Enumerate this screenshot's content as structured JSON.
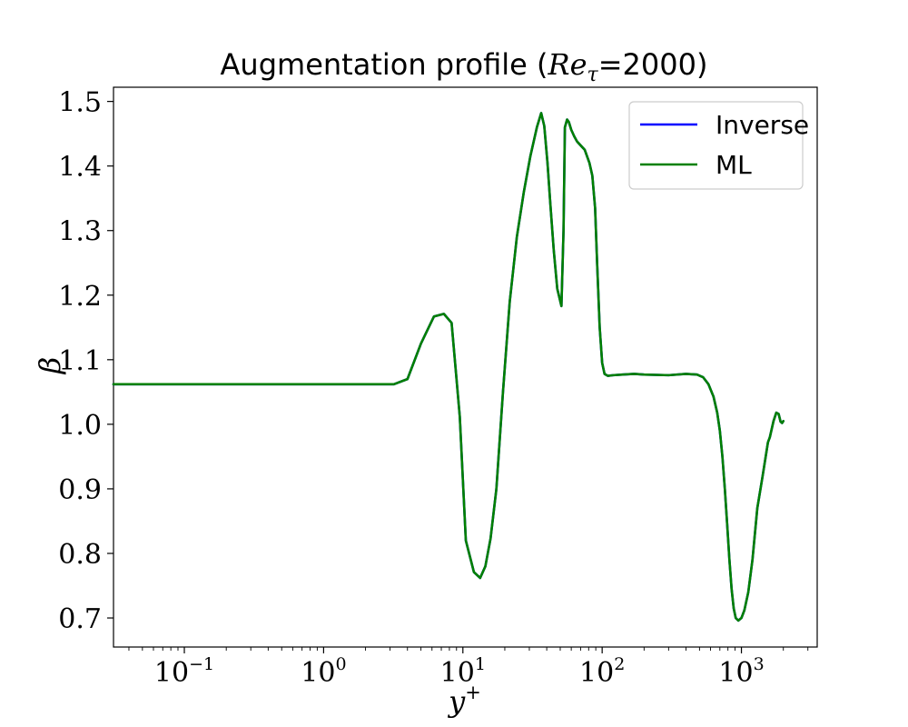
{
  "chart_data": {
    "type": "line",
    "title": {
      "prefix": "Augmentation profile (",
      "math_main": "Re",
      "math_sub": "τ",
      "suffix": "=2000)"
    },
    "xlabel": {
      "main": "y",
      "sup": "+"
    },
    "ylabel": "β",
    "xscale": "log",
    "xlim": [
      0.031,
      3500
    ],
    "ylim": [
      0.655,
      1.522
    ],
    "x_ticks": [
      {
        "value": 0.1,
        "base": "10",
        "exp": "−1"
      },
      {
        "value": 1,
        "base": "10",
        "exp": "0"
      },
      {
        "value": 10,
        "base": "10",
        "exp": "1"
      },
      {
        "value": 100,
        "base": "10",
        "exp": "2"
      },
      {
        "value": 1000,
        "base": "10",
        "exp": "3"
      }
    ],
    "y_ticks": [
      0.7,
      0.8,
      0.9,
      1.0,
      1.1,
      1.2,
      1.3,
      1.4,
      1.5
    ],
    "y_tick_labels": [
      "0.7",
      "0.8",
      "0.9",
      "1.0",
      "1.1",
      "1.2",
      "1.3",
      "1.4",
      "1.5"
    ],
    "grid": false,
    "legend_position": "top-right",
    "series": [
      {
        "name": "Inverse",
        "color": "#0000ff",
        "x": [
          0.031,
          0.1,
          1,
          3.2,
          4.0,
          5.0,
          6.2,
          7.3,
          8.3,
          9.5,
          10.5,
          12.0,
          13.3,
          14.5,
          15.8,
          17.4,
          19.4,
          21.7,
          24.4,
          27.4,
          30.5,
          34.0,
          36.5,
          38.4,
          40.5,
          42.5,
          44.9,
          47.6,
          51.0,
          52.8,
          54.0,
          56.0,
          57.7,
          60.0,
          63.0,
          66.0,
          70.0,
          75.0,
          81.0,
          85.0,
          89.0,
          92.0,
          96.0,
          100.0,
          104.0,
          110.0,
          120.0,
          140.0,
          170.0,
          200.0,
          300.0,
          400.0,
          480.0,
          530.0,
          580.0,
          630.0,
          670.0,
          700.0,
          730.0,
          760.0,
          790.0,
          820.0,
          850.0,
          880.0,
          910.0,
          950.0,
          1000.0,
          1050.0,
          1120.0,
          1200.0,
          1300.0,
          1420.0,
          1550.0,
          1600.0,
          1700.0,
          1780.0,
          1850.0,
          1880.0,
          1910.0,
          1960.0,
          2000.0
        ],
        "y": [
          1.062,
          1.062,
          1.062,
          1.062,
          1.07,
          1.125,
          1.167,
          1.171,
          1.157,
          1.012,
          0.82,
          0.771,
          0.762,
          0.78,
          0.823,
          0.9,
          1.05,
          1.19,
          1.29,
          1.36,
          1.415,
          1.46,
          1.482,
          1.462,
          1.405,
          1.34,
          1.27,
          1.21,
          1.183,
          1.3,
          1.46,
          1.472,
          1.468,
          1.456,
          1.446,
          1.438,
          1.432,
          1.425,
          1.405,
          1.385,
          1.335,
          1.25,
          1.15,
          1.095,
          1.078,
          1.075,
          1.076,
          1.077,
          1.078,
          1.077,
          1.076,
          1.078,
          1.077,
          1.073,
          1.062,
          1.043,
          1.018,
          0.99,
          0.95,
          0.9,
          0.845,
          0.79,
          0.745,
          0.715,
          0.7,
          0.696,
          0.7,
          0.712,
          0.74,
          0.79,
          0.87,
          0.92,
          0.972,
          0.98,
          1.005,
          1.018,
          1.016,
          1.01,
          1.004,
          1.002,
          1.005
        ]
      },
      {
        "name": "ML",
        "color": "#008000",
        "x": [
          0.031,
          0.1,
          1,
          3.2,
          4.0,
          5.0,
          6.2,
          7.3,
          8.3,
          9.5,
          10.5,
          12.0,
          13.3,
          14.5,
          15.8,
          17.4,
          19.4,
          21.7,
          24.4,
          27.4,
          30.5,
          34.0,
          36.5,
          38.4,
          40.5,
          42.5,
          44.9,
          47.6,
          51.0,
          52.8,
          54.0,
          56.0,
          57.7,
          60.0,
          63.0,
          66.0,
          70.0,
          75.0,
          81.0,
          85.0,
          89.0,
          92.0,
          96.0,
          100.0,
          104.0,
          110.0,
          120.0,
          140.0,
          170.0,
          200.0,
          300.0,
          400.0,
          480.0,
          530.0,
          580.0,
          630.0,
          670.0,
          700.0,
          730.0,
          760.0,
          790.0,
          820.0,
          850.0,
          880.0,
          910.0,
          950.0,
          1000.0,
          1050.0,
          1120.0,
          1200.0,
          1300.0,
          1420.0,
          1550.0,
          1600.0,
          1700.0,
          1780.0,
          1850.0,
          1880.0,
          1910.0,
          1960.0,
          2000.0
        ],
        "y": [
          1.062,
          1.062,
          1.062,
          1.062,
          1.07,
          1.125,
          1.167,
          1.171,
          1.157,
          1.012,
          0.82,
          0.771,
          0.762,
          0.78,
          0.823,
          0.9,
          1.05,
          1.19,
          1.29,
          1.36,
          1.415,
          1.46,
          1.482,
          1.462,
          1.405,
          1.34,
          1.27,
          1.21,
          1.183,
          1.3,
          1.46,
          1.472,
          1.468,
          1.456,
          1.446,
          1.438,
          1.432,
          1.425,
          1.405,
          1.385,
          1.335,
          1.25,
          1.15,
          1.095,
          1.078,
          1.075,
          1.076,
          1.077,
          1.078,
          1.077,
          1.076,
          1.078,
          1.077,
          1.073,
          1.062,
          1.043,
          1.018,
          0.99,
          0.95,
          0.9,
          0.845,
          0.79,
          0.745,
          0.715,
          0.7,
          0.696,
          0.7,
          0.712,
          0.74,
          0.79,
          0.87,
          0.92,
          0.972,
          0.98,
          1.005,
          1.018,
          1.016,
          1.01,
          1.004,
          1.002,
          1.005
        ]
      }
    ]
  }
}
